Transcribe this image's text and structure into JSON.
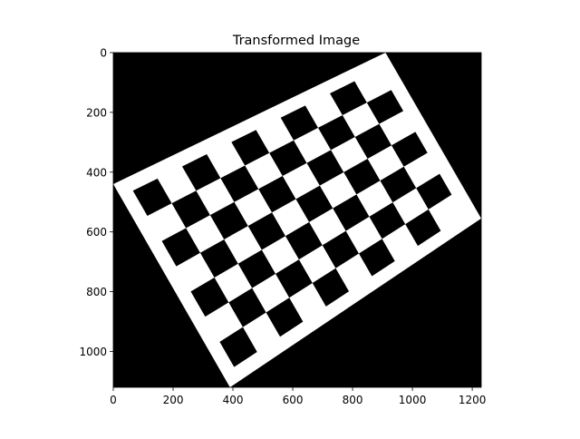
{
  "chart_data": {
    "type": "heatmap",
    "title": "Transformed Image",
    "xlabel": "",
    "ylabel": "",
    "xlim": [
      0,
      1230
    ],
    "ylim": [
      1120,
      0
    ],
    "y_axis_inverted": true,
    "grid": false,
    "legend": "none",
    "x_ticks": [
      0,
      200,
      400,
      600,
      800,
      1000,
      1200
    ],
    "x_tick_labels": [
      "0",
      "200",
      "400",
      "600",
      "800",
      "1000",
      "1200"
    ],
    "y_ticks": [
      0,
      200,
      400,
      600,
      800,
      1000
    ],
    "y_tick_labels": [
      "0",
      "200",
      "400",
      "600",
      "800",
      "1000"
    ],
    "image": {
      "description": "rotated checkerboard pattern",
      "background_color": "#000000",
      "board_color": "#ffffff",
      "square_color": "#000000",
      "board_corners": [
        [
          0,
          440
        ],
        [
          910,
          0
        ],
        [
          1230,
          555
        ],
        [
          390,
          1120
        ]
      ],
      "board_rows": 7,
      "board_cols": 10,
      "checker_inset_cells": 0.5
    }
  }
}
